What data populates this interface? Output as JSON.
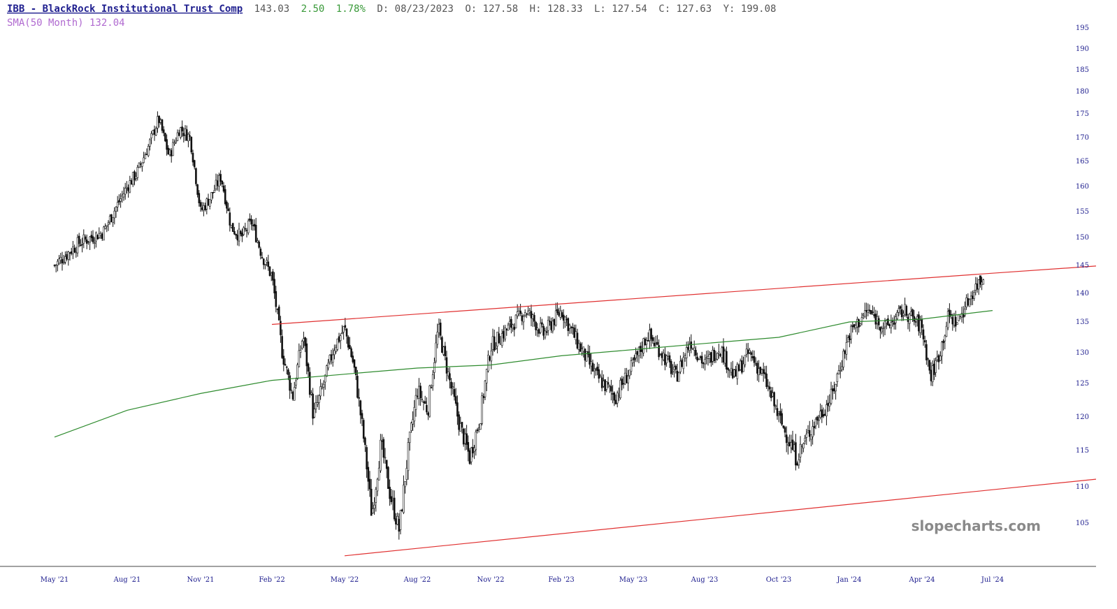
{
  "header": {
    "ticker_name": "IBB - BlackRock Institutional Trust Comp",
    "last": "143.03",
    "change": "2.50",
    "change_pct": "1.78%",
    "date_text": "D: 08/23/2023",
    "open_text": "O: 127.58",
    "high_text": "H: 128.33",
    "low_text": "L: 127.54",
    "close_text": "C: 127.63",
    "year_text": "Y: 199.08",
    "sma_label": "SMA(50 Month) 132.04"
  },
  "watermark": "slopecharts.com",
  "colors": {
    "title": "#1f1f8f",
    "header_text": "#555555",
    "change_up": "#3a9a3a",
    "sma_label": "#b06ad0",
    "sma_line": "#2e8b2e",
    "trendline": "#e03030",
    "candle": "#111111",
    "axis": "#1a1a8c"
  },
  "chart_data": {
    "type": "candlestick",
    "title": "IBB - BlackRock Institutional Trust Comp",
    "xlabel": "",
    "ylabel": "",
    "ylim": [
      100,
      196
    ],
    "grid": false,
    "y_ticks": [
      105,
      110,
      115,
      120,
      125,
      130,
      135,
      140,
      145,
      150,
      155,
      160,
      165,
      170,
      175,
      180,
      185,
      190,
      195
    ],
    "x_ticks": [
      "May '21",
      "Aug '21",
      "Nov '21",
      "Feb '22",
      "May '22",
      "Aug '22",
      "Nov '22",
      "Feb '23",
      "May '23",
      "Aug '23",
      "Oct '23",
      "Jan '24",
      "Apr '24",
      "Jul '24"
    ],
    "price_path": [
      [
        "May '21",
        145
      ],
      [
        "May '21",
        149
      ],
      [
        "May '21",
        151
      ],
      [
        "Aug '21",
        160
      ],
      [
        "Aug '21",
        163
      ],
      [
        "Aug '21",
        168
      ],
      [
        "Aug '21",
        174
      ],
      [
        "Aug '21",
        166
      ],
      [
        "Aug '21",
        172
      ],
      [
        "Aug '21",
        170
      ],
      [
        "Nov '21",
        155
      ],
      [
        "Nov '21",
        158
      ],
      [
        "Nov '21",
        162
      ],
      [
        "Nov '21",
        152
      ],
      [
        "Nov '21",
        150
      ],
      [
        "Nov '21",
        153
      ],
      [
        "Nov '21",
        147
      ],
      [
        "Feb '22",
        143
      ],
      [
        "Feb '22",
        130
      ],
      [
        "Feb '22",
        123
      ],
      [
        "Feb '22",
        133
      ],
      [
        "Feb '22",
        120
      ],
      [
        "Feb '22",
        125
      ],
      [
        "Feb '22",
        131
      ],
      [
        "May '22",
        134
      ],
      [
        "May '22",
        128
      ],
      [
        "May '22",
        118
      ],
      [
        "May '22",
        106
      ],
      [
        "May '22",
        116
      ],
      [
        "May '22",
        109
      ],
      [
        "May '22",
        104
      ],
      [
        "May '22",
        115
      ],
      [
        "Aug '22",
        124
      ],
      [
        "Aug '22",
        121
      ],
      [
        "Aug '22",
        134
      ],
      [
        "Aug '22",
        126
      ],
      [
        "Aug '22",
        119
      ],
      [
        "Aug '22",
        114
      ],
      [
        "Aug '22",
        120
      ],
      [
        "Nov '22",
        131
      ],
      [
        "Nov '22",
        134
      ],
      [
        "Nov '22",
        137
      ],
      [
        "Nov '22",
        133
      ],
      [
        "Feb '23",
        137
      ],
      [
        "Feb '23",
        131
      ],
      [
        "Feb '23",
        126
      ],
      [
        "Feb '23",
        123
      ],
      [
        "May '23",
        128
      ],
      [
        "May '23",
        133
      ],
      [
        "May '23",
        130
      ],
      [
        "May '23",
        126
      ],
      [
        "May '23",
        132
      ],
      [
        "Aug '23",
        128
      ],
      [
        "Aug '23",
        131
      ],
      [
        "Aug '23",
        126
      ],
      [
        "Aug '23",
        130
      ],
      [
        "Aug '23",
        126
      ],
      [
        "Oct '23",
        120
      ],
      [
        "Oct '23",
        114
      ],
      [
        "Oct '23",
        119
      ],
      [
        "Oct '23",
        123
      ],
      [
        "Jan '24",
        133
      ],
      [
        "Jan '24",
        137
      ],
      [
        "Jan '24",
        134
      ],
      [
        "Jan '24",
        137
      ],
      [
        "Apr '24",
        134
      ],
      [
        "Apr '24",
        126
      ],
      [
        "Apr '24",
        130
      ],
      [
        "Apr '24",
        136
      ],
      [
        "Apr '24",
        135
      ],
      [
        "Apr '24",
        138
      ],
      [
        "Apr '24",
        141
      ],
      [
        "Apr '24",
        143
      ]
    ],
    "series": [
      {
        "name": "SMA(50 Month)",
        "points": [
          [
            "May '21",
            117
          ],
          [
            "Aug '21",
            121
          ],
          [
            "Nov '21",
            123.5
          ],
          [
            "Feb '22",
            125.5
          ],
          [
            "May '22",
            126.5
          ],
          [
            "Aug '22",
            127.5
          ],
          [
            "Nov '22",
            128
          ],
          [
            "Feb '23",
            129.5
          ],
          [
            "May '23",
            130.5
          ],
          [
            "Aug '23",
            131.5
          ],
          [
            "Oct '23",
            132.5
          ],
          [
            "Jan '24",
            135
          ],
          [
            "Apr '24",
            135.5
          ],
          [
            "Jul '24",
            137
          ]
        ]
      },
      {
        "name": "upper trendline",
        "points": [
          [
            "Feb '22",
            134.6
          ],
          [
            "Jul '24",
            143.6
          ]
        ]
      },
      {
        "name": "lower trendline",
        "points": [
          [
            "May '22",
            100.5
          ],
          [
            "Jul '24",
            109.6
          ]
        ]
      }
    ]
  }
}
